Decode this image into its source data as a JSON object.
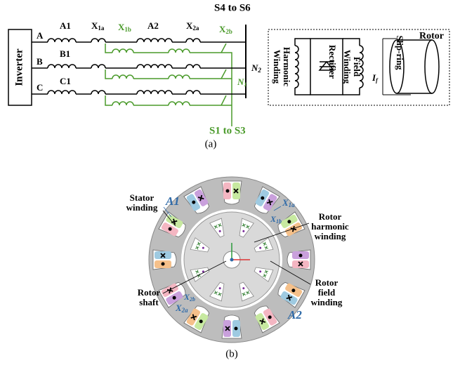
{
  "figure_a": {
    "inverter": "Inverter",
    "phases": [
      "A",
      "B",
      "C"
    ],
    "windings": [
      "A1",
      "B1",
      "C1",
      "A2"
    ],
    "aux": [
      {
        "main": "X",
        "sub": "1a"
      },
      {
        "main": "X",
        "sub": "2a"
      },
      {
        "main": "X",
        "sub": "1b"
      },
      {
        "main": "X",
        "sub": "2b"
      }
    ],
    "switch_top": "S4 to S6",
    "switch_bottom": "S1 to S3",
    "neutrals": [
      {
        "main": "N",
        "sub": "2"
      },
      {
        "main": "N",
        "sub": "1"
      }
    ],
    "rotor": {
      "title": "Rotor",
      "harmonic": [
        "Harmonic",
        "Winding"
      ],
      "rectifier": "Rectifier",
      "field": [
        "Field",
        "Winding"
      ],
      "current": {
        "main": "I",
        "sub": "f"
      },
      "slip_ring": "Slip-ring"
    },
    "caption": "(a)"
  },
  "figure_b": {
    "stator": [
      "Stator",
      "winding"
    ],
    "rotor_harmonic": [
      "Rotor",
      "harmonic",
      "winding"
    ],
    "rotor_field": [
      "Rotor",
      "field",
      "winding"
    ],
    "rotor_shaft": [
      "Rotor",
      "shaft"
    ],
    "phase_labels": [
      "A1",
      "A2"
    ],
    "aux": [
      {
        "main": "X",
        "sub": "1a"
      },
      {
        "main": "X",
        "sub": "1b"
      },
      {
        "main": "X",
        "sub": "2b"
      },
      {
        "main": "X",
        "sub": "2a"
      }
    ],
    "caption": "(b)"
  }
}
